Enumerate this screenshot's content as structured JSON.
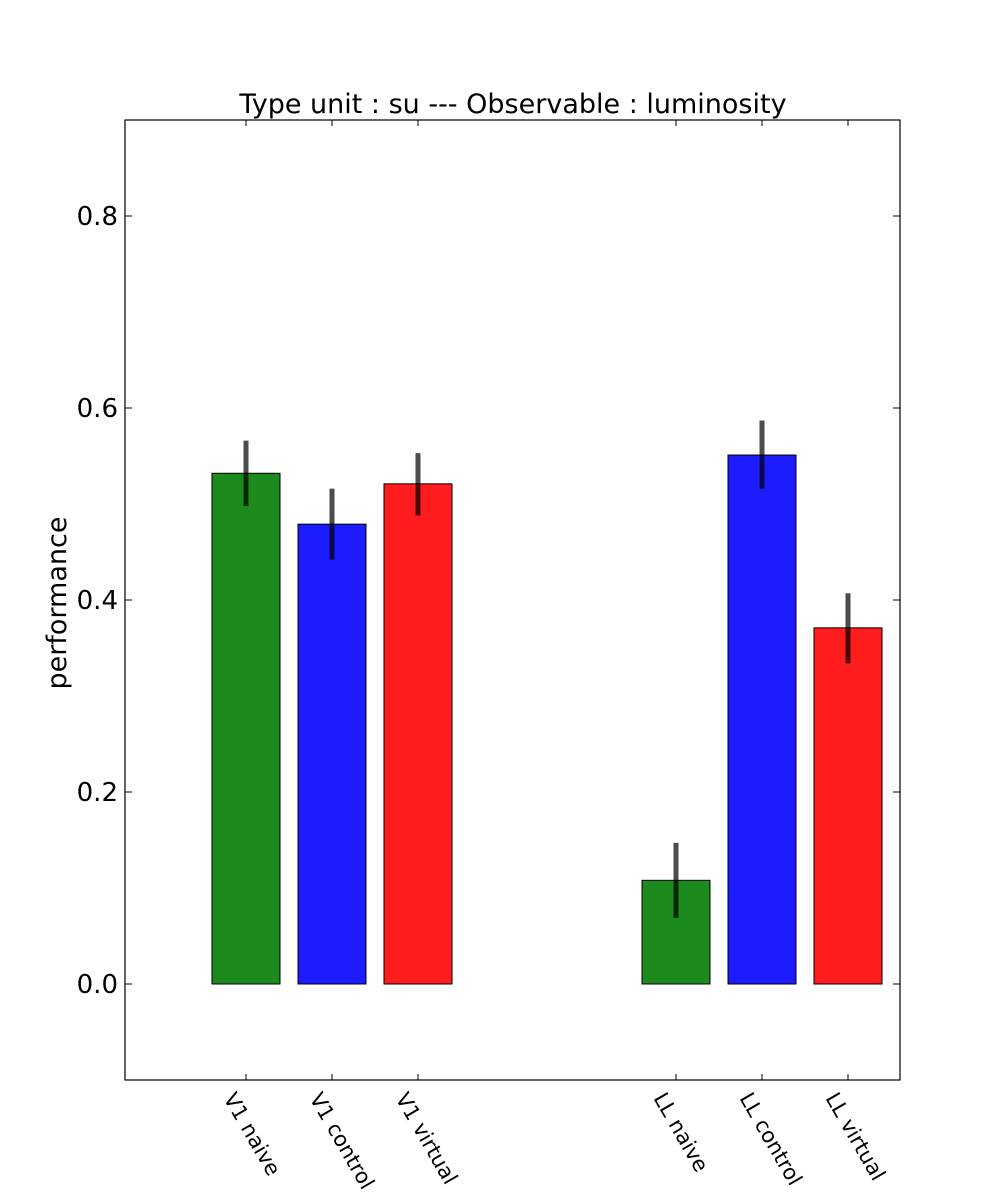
{
  "chart_data": {
    "type": "bar",
    "title": "Type unit : su --- Observable : luminosity",
    "xlabel": "",
    "ylabel": "performance",
    "ylim": [
      -0.1,
      0.9
    ],
    "yticks": [
      0.0,
      0.2,
      0.4,
      0.6,
      0.8
    ],
    "ytick_labels": [
      "0.0",
      "0.2",
      "0.4",
      "0.6",
      "0.8"
    ],
    "grid": false,
    "legend": "none",
    "bars": [
      {
        "label": "V1 naive",
        "group": "V1",
        "value": 0.532,
        "err_low": 0.498,
        "err_high": 0.566,
        "color": "#1c8a1c"
      },
      {
        "label": "V1 control",
        "group": "V1",
        "value": 0.479,
        "err_low": 0.442,
        "err_high": 0.516,
        "color": "#1c1cff"
      },
      {
        "label": "V1 virtual",
        "group": "V1",
        "value": 0.521,
        "err_low": 0.488,
        "err_high": 0.553,
        "color": "#ff1c1c"
      },
      {
        "label": "LL naive",
        "group": "LL",
        "value": 0.108,
        "err_low": 0.069,
        "err_high": 0.147,
        "color": "#1c8a1c"
      },
      {
        "label": "LL control",
        "group": "LL",
        "value": 0.551,
        "err_low": 0.516,
        "err_high": 0.587,
        "color": "#1c1cff"
      },
      {
        "label": "LL virtual",
        "group": "LL",
        "value": 0.371,
        "err_low": 0.334,
        "err_high": 0.407,
        "color": "#ff1c1c"
      }
    ]
  }
}
